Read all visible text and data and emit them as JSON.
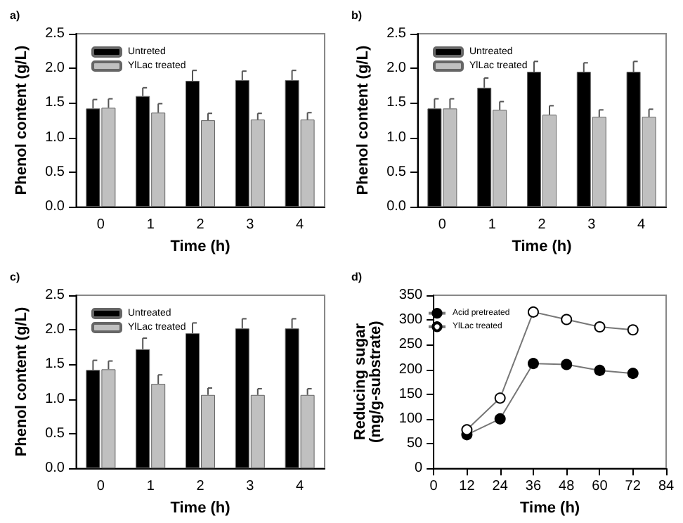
{
  "chart_data": [
    {
      "type": "bar",
      "title": "a)",
      "xlabel": "Time (h)",
      "ylabel": "Phenol content (g/L)",
      "categories": [
        "0",
        "1",
        "2",
        "3",
        "4"
      ],
      "ylim": [
        0,
        2.5
      ],
      "yticks": [
        {
          "value": 0,
          "label": "0.0"
        },
        0.5,
        {
          "value": 1,
          "label": "1.0"
        },
        1.5,
        {
          "value": 2,
          "label": "2.0"
        },
        2.5
      ],
      "legend": "top left",
      "grid": false,
      "series": [
        {
          "name": "Untreted",
          "color": "#000000",
          "values": [
            1.42,
            1.6,
            1.82,
            1.83,
            1.83
          ],
          "errors": [
            [
              1.42,
              1.55
            ],
            [
              1.6,
              1.72
            ],
            [
              1.82,
              1.97
            ],
            [
              1.83,
              1.96
            ],
            [
              1.83,
              1.97
            ]
          ]
        },
        {
          "name": "YlLac treated",
          "color": "#c0c0c0",
          "values": [
            1.43,
            1.36,
            1.25,
            1.26,
            1.26
          ],
          "errors": [
            [
              1.43,
              1.56
            ],
            [
              1.36,
              1.49
            ],
            [
              1.25,
              1.35
            ],
            [
              1.26,
              1.35
            ],
            [
              1.26,
              1.36
            ]
          ]
        }
      ]
    },
    {
      "type": "bar",
      "title": "b)",
      "xlabel": "Time (h)",
      "ylabel": "Phenol content (g/L)",
      "categories": [
        "0",
        "1",
        "2",
        "3",
        "4"
      ],
      "ylim": [
        0,
        2.5
      ],
      "yticks": [
        {
          "value": 0,
          "label": "0.0"
        },
        0.5,
        {
          "value": 1,
          "label": "1.0"
        },
        1.5,
        {
          "value": 2,
          "label": "2.0"
        },
        2.5
      ],
      "legend": "top left",
      "grid": false,
      "series": [
        {
          "name": "Untreated",
          "color": "#000000",
          "values": [
            1.42,
            1.72,
            1.95,
            1.95,
            1.95
          ],
          "errors": [
            [
              1.42,
              1.56
            ],
            [
              1.72,
              1.86
            ],
            [
              1.95,
              2.1
            ],
            [
              1.95,
              2.08
            ],
            [
              1.95,
              2.1
            ]
          ]
        },
        {
          "name": "YlLac treated",
          "color": "#c0c0c0",
          "values": [
            1.42,
            1.4,
            1.33,
            1.3,
            1.3
          ],
          "errors": [
            [
              1.42,
              1.56
            ],
            [
              1.4,
              1.52
            ],
            [
              1.33,
              1.46
            ],
            [
              1.3,
              1.4
            ],
            [
              1.3,
              1.41
            ]
          ]
        }
      ]
    },
    {
      "type": "bar",
      "title": "c)",
      "xlabel": "Time (h)",
      "ylabel": "Phenol content (g/L)",
      "categories": [
        "0",
        "1",
        "2",
        "3",
        "4"
      ],
      "ylim": [
        0,
        2.5
      ],
      "yticks": [
        {
          "value": 0,
          "label": "0.0"
        },
        0.5,
        {
          "value": 1,
          "label": "1.0"
        },
        1.5,
        {
          "value": 2,
          "label": "2.0"
        },
        2.5
      ],
      "legend": "top left",
      "grid": false,
      "series": [
        {
          "name": "Untreated",
          "color": "#000000",
          "values": [
            1.42,
            1.72,
            1.95,
            2.02,
            2.02
          ],
          "errors": [
            [
              1.42,
              1.56
            ],
            [
              1.72,
              1.88
            ],
            [
              1.95,
              2.1
            ],
            [
              2.02,
              2.16
            ],
            [
              2.02,
              2.16
            ]
          ]
        },
        {
          "name": "YlLac treated",
          "color": "#c0c0c0",
          "values": [
            1.43,
            1.22,
            1.06,
            1.06,
            1.06
          ],
          "errors": [
            [
              1.43,
              1.55
            ],
            [
              1.22,
              1.35
            ],
            [
              1.06,
              1.16
            ],
            [
              1.06,
              1.15
            ],
            [
              1.06,
              1.15
            ]
          ]
        }
      ]
    },
    {
      "type": "line",
      "title": "d)",
      "xlabel": "Time (h)",
      "ylabel": "Reducing sugar\n(mg/g-substrate)",
      "x": [
        12,
        24,
        36,
        48,
        60,
        72
      ],
      "xlim": [
        0,
        84
      ],
      "xticks": [
        0,
        12,
        24,
        36,
        48,
        60,
        72,
        84
      ],
      "ylim": [
        0,
        350
      ],
      "yticks": [
        0,
        50,
        100,
        150,
        200,
        250,
        300,
        350
      ],
      "legend": "top left",
      "grid": false,
      "marker": "circle",
      "line_style": "solid",
      "series": [
        {
          "name": "Acid pretreated",
          "color": "#000000",
          "values": [
            68,
            100,
            212,
            210,
            198,
            192
          ]
        },
        {
          "name": "YlLac treated",
          "color": "#ffffff",
          "values": [
            78,
            142,
            316,
            301,
            286,
            280
          ]
        }
      ]
    }
  ]
}
